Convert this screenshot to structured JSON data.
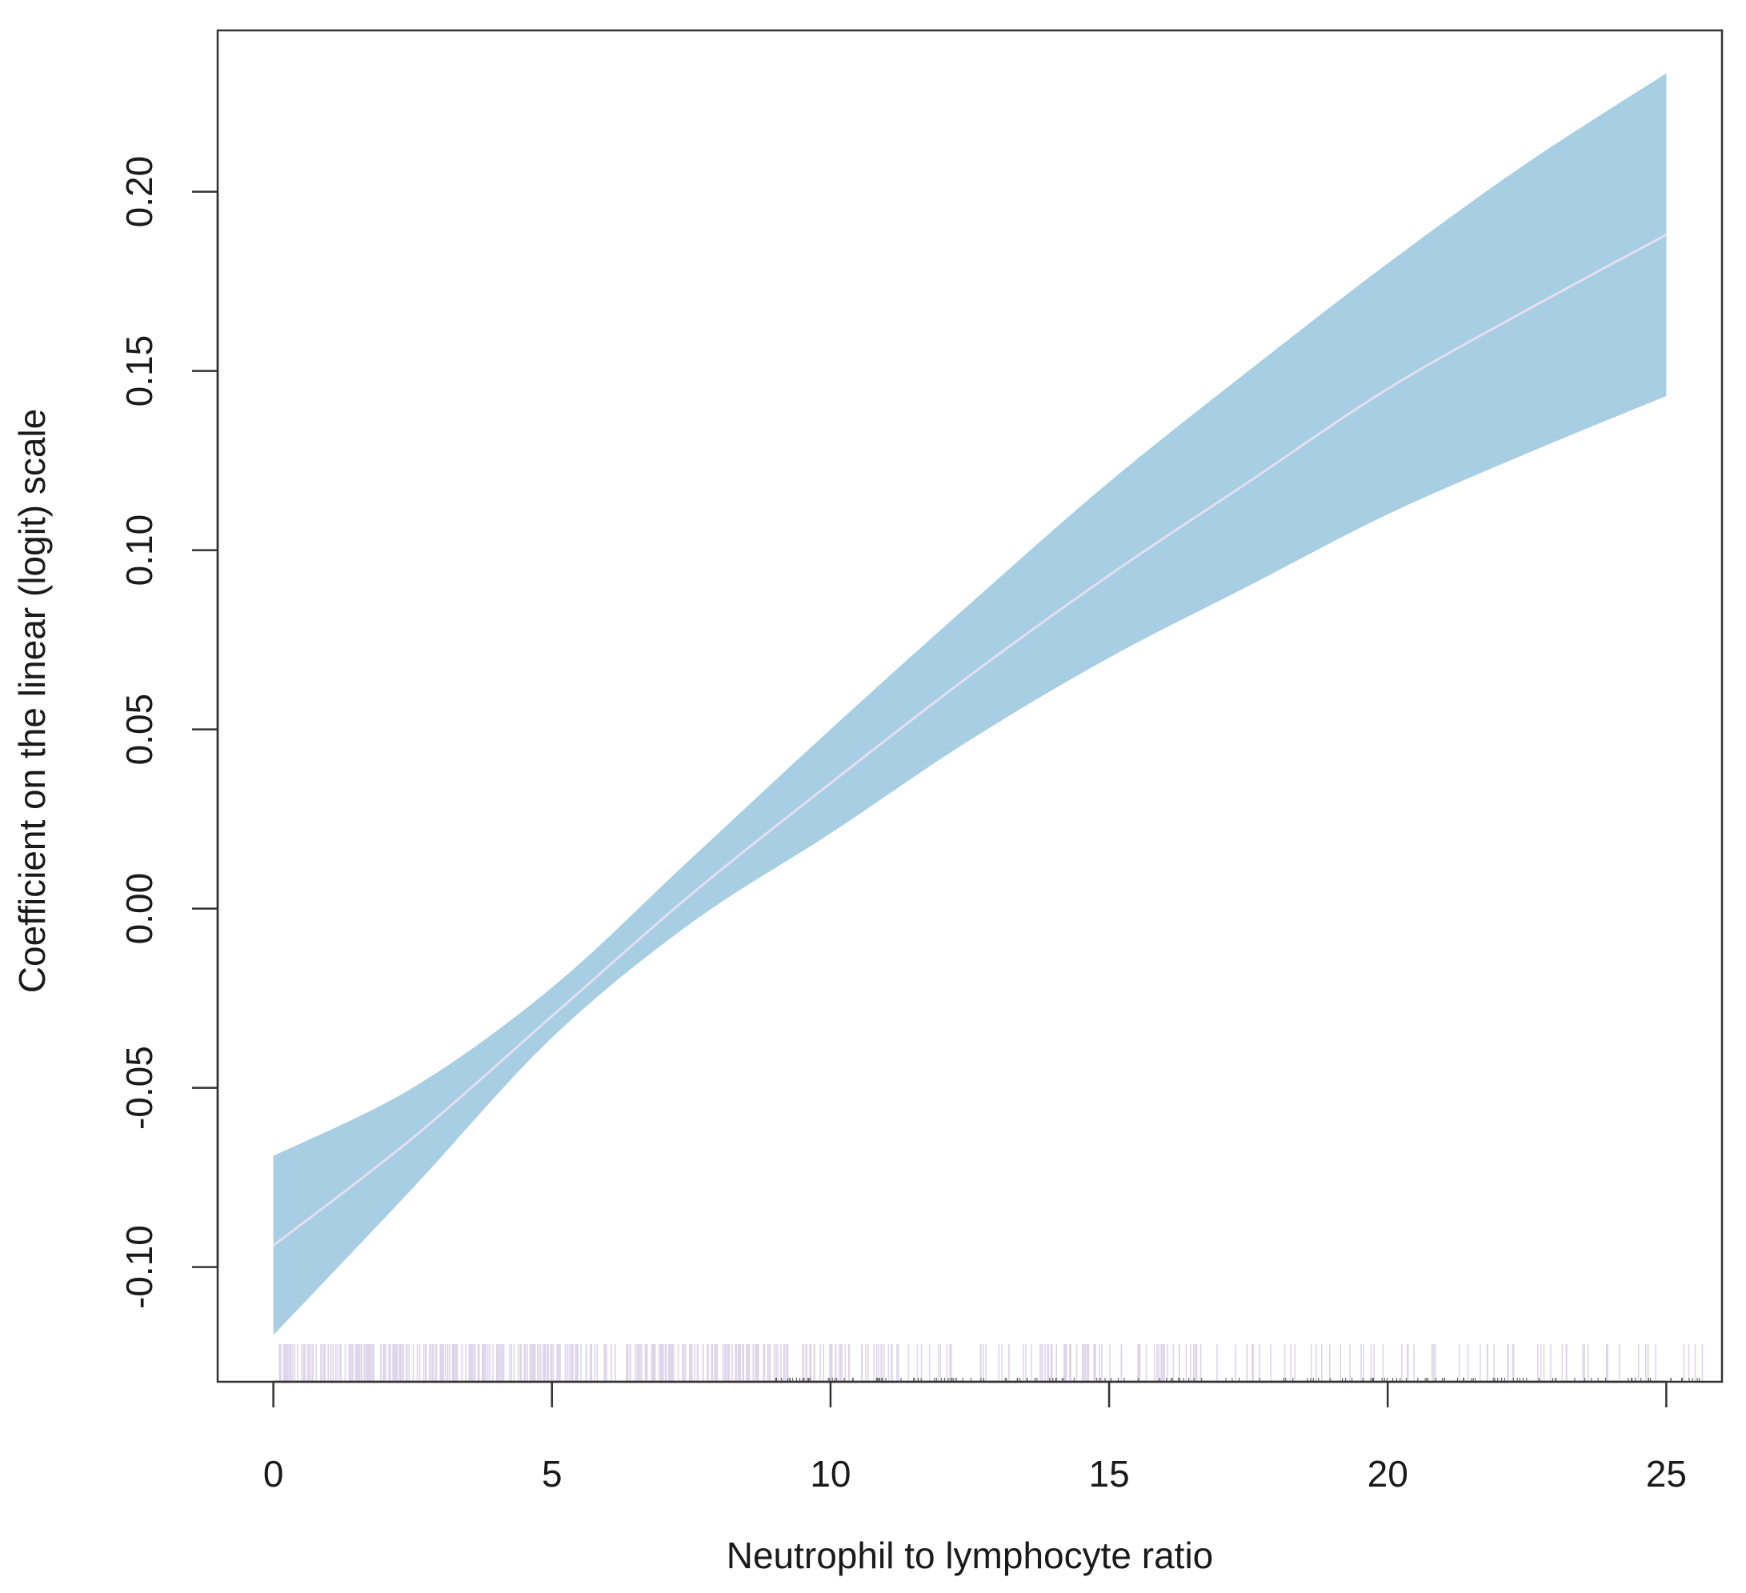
{
  "chart_data": {
    "type": "line",
    "title": "",
    "xlabel": "Neutrophil to lymphocyte ratio",
    "ylabel": "Coefficient on the linear (logit) scale",
    "xlim": [
      -1,
      26
    ],
    "ylim": [
      -0.132,
      0.245
    ],
    "x_ticks": [
      0,
      5,
      10,
      15,
      20,
      25
    ],
    "x_tick_labels": [
      "0",
      "5",
      "10",
      "15",
      "20",
      "25"
    ],
    "y_ticks": [
      -0.1,
      -0.05,
      0.0,
      0.05,
      0.1,
      0.15,
      0.2
    ],
    "y_tick_labels": [
      "-0.10",
      "-0.05",
      "0.00",
      "0.05",
      "0.10",
      "0.15",
      "0.20"
    ],
    "grid": false,
    "colors": {
      "confidence_band": "#a7cee2",
      "estimate_line": "#e3dff1",
      "rug": "#ddd6ea",
      "axis": "#333333"
    },
    "series": [
      {
        "kind": "estimate",
        "x": [
          0,
          2.5,
          5,
          7.5,
          10,
          12.5,
          15,
          17.5,
          20,
          22.5,
          25
        ],
        "y": [
          -0.094,
          -0.064,
          -0.03,
          0.004,
          0.035,
          0.065,
          0.093,
          0.119,
          0.145,
          0.167,
          0.188
        ]
      },
      {
        "kind": "band_upper",
        "x": [
          0,
          2.5,
          5,
          7.5,
          10,
          12.5,
          15,
          17.5,
          20,
          22.5,
          25
        ],
        "y": [
          -0.069,
          -0.05,
          -0.022,
          0.014,
          0.05,
          0.085,
          0.119,
          0.15,
          0.18,
          0.208,
          0.233
        ]
      },
      {
        "kind": "band_lower",
        "x": [
          0,
          2.5,
          5,
          7.5,
          10,
          12.5,
          15,
          17.5,
          20,
          22.5,
          25
        ],
        "y": [
          -0.119,
          -0.078,
          -0.036,
          -0.004,
          0.021,
          0.047,
          0.07,
          0.09,
          0.11,
          0.127,
          0.143
        ]
      }
    ],
    "rug": {
      "x_min": 0.1,
      "x_max": 25.8,
      "density": "dense below 9, sparser toward 25"
    }
  }
}
